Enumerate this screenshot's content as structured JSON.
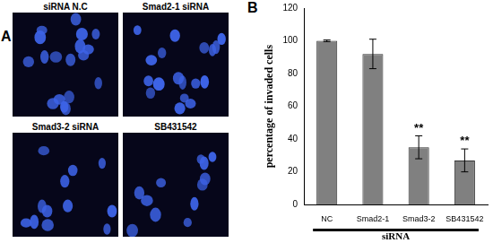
{
  "panel_a": {
    "label": "A",
    "images": [
      "siRNA N.C",
      "Smad2-1 siRNA",
      "Smad3-2 siRNA",
      "SB431542"
    ]
  },
  "panel_b_label": "B",
  "chart_data": {
    "type": "bar",
    "categories": [
      "NC",
      "Smad2-1",
      "Smad3-2",
      "SB431542"
    ],
    "values": [
      100,
      92,
      35,
      27
    ],
    "errors": [
      0.5,
      9,
      7,
      7
    ],
    "color": "#808080",
    "y_label": "percentage of invaded cells",
    "x_label": "siRNA",
    "annotations": [
      {
        "category": "Smad3-2",
        "text": "**"
      },
      {
        "category": "SB431542",
        "text": "**"
      }
    ],
    "ylim": [
      0,
      120
    ],
    "yticks": [
      0,
      20,
      40,
      60,
      80,
      100,
      120
    ],
    "grid": false
  }
}
